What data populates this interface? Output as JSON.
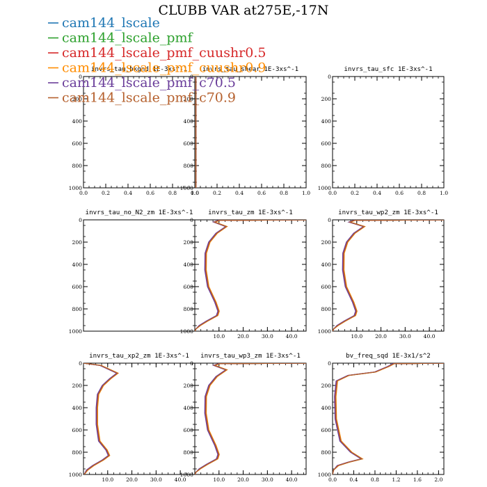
{
  "figure_title": "CLUBB VAR at275E,-17N",
  "legend": [
    {
      "label": "cam144_lscale",
      "color": "#1f77b4"
    },
    {
      "label": "cam144_lscale_pmf",
      "color": "#2ca02c"
    },
    {
      "label": "cam144_lscale_pmf_cuushr0.5",
      "color": "#d62728"
    },
    {
      "label": "cam144_lscale_pmf_cuushr0.9",
      "color": "#ff8c00"
    },
    {
      "label": "cam144_lscale_pmf_c70.5",
      "color": "#6a3d9a"
    },
    {
      "label": "cam144_lscale_pmf_c70.9",
      "color": "#b5602d"
    }
  ],
  "chart_data": [
    {
      "type": "line",
      "title": "invrs_tau_bkgnd  1E-3xs^-1",
      "xlim": [
        0,
        1.0
      ],
      "ylim": [
        1000,
        0
      ],
      "xticks": [
        0,
        0.2,
        0.4,
        0.6,
        0.8,
        1.0
      ],
      "xtick_labels": [
        "0.0",
        "0.2",
        "0.4",
        "0.6",
        "0.8",
        "1.0"
      ],
      "yticks": [
        0,
        200,
        400,
        600,
        800,
        1000
      ],
      "ytick_labels": [
        "0",
        "200",
        "400",
        "600",
        "800",
        "1000"
      ],
      "profile": null
    },
    {
      "type": "line",
      "title": "invrs_tau_shear  1E-3xs^-1",
      "xlim": [
        0,
        1.0
      ],
      "ylim": [
        1000,
        0
      ],
      "xticks": [
        0,
        0.2,
        0.4,
        0.6,
        0.8,
        1.0
      ],
      "xtick_labels": [
        "0.0",
        "0.2",
        "0.4",
        "0.6",
        "0.8",
        "1.0"
      ],
      "yticks": [
        0,
        200,
        400,
        600,
        800,
        1000
      ],
      "ytick_labels": [
        "0",
        "200",
        "400",
        "600",
        "800",
        "1000"
      ],
      "profile": {
        "x": [
          0.01,
          0.01
        ],
        "y": [
          0,
          1000
        ]
      }
    },
    {
      "type": "line",
      "title": "invrs_tau_sfc  1E-3xs^-1",
      "xlim": [
        0,
        1.0
      ],
      "ylim": [
        1000,
        0
      ],
      "xticks": [
        0,
        0.2,
        0.4,
        0.6,
        0.8,
        1.0
      ],
      "xtick_labels": [
        "0.0",
        "0.2",
        "0.4",
        "0.6",
        "0.8",
        "1.0"
      ],
      "yticks": [
        0,
        200,
        400,
        600,
        800,
        1000
      ],
      "ytick_labels": [
        "0",
        "200",
        "400",
        "600",
        "800",
        "1000"
      ],
      "profile": null
    },
    {
      "type": "line",
      "title": "invrs_tau_no_N2_zm  1E-3xs^-1",
      "xlim": [
        0,
        1.0
      ],
      "ylim": [
        1000,
        0
      ],
      "xticks": [],
      "xtick_labels": [],
      "yticks": [
        0,
        200,
        400,
        600,
        800,
        1000
      ],
      "ytick_labels": [
        "0",
        "200",
        "400",
        "600",
        "800",
        "1000"
      ],
      "profile": null
    },
    {
      "type": "line",
      "title": "invrs_tau_zm  1E-3xs^-1",
      "xlim": [
        0,
        46
      ],
      "ylim": [
        1000,
        0
      ],
      "xticks": [
        10,
        20,
        30,
        40
      ],
      "xtick_labels": [
        "10.0",
        "20.0",
        "30.0",
        "40.0"
      ],
      "yticks": [
        0,
        200,
        400,
        600,
        800,
        1000
      ],
      "ytick_labels": [
        "0",
        "200",
        "400",
        "600",
        "800",
        "1000"
      ],
      "profile": {
        "x": [
          46,
          10,
          8,
          13,
          9,
          6,
          4.5,
          4.4,
          5.5,
          8.5,
          9.8,
          9.2,
          5,
          2,
          0.5,
          0.1
        ],
        "y": [
          0,
          5,
          20,
          60,
          120,
          200,
          300,
          450,
          600,
          740,
          820,
          860,
          910,
          950,
          980,
          1000
        ]
      }
    },
    {
      "type": "line",
      "title": "invrs_tau_wp2_zm  1E-3xs^-1",
      "xlim": [
        0,
        46
      ],
      "ylim": [
        1000,
        0
      ],
      "xticks": [
        10,
        20,
        30,
        40
      ],
      "xtick_labels": [
        "10.0",
        "20.0",
        "30.0",
        "40.0"
      ],
      "yticks": [
        0,
        200,
        400,
        600,
        800,
        1000
      ],
      "ytick_labels": [
        "0",
        "200",
        "400",
        "600",
        "800",
        "1000"
      ],
      "profile": {
        "x": [
          46,
          9,
          7,
          13,
          9,
          6,
          4.5,
          4.4,
          5.5,
          8.5,
          9.8,
          9.2,
          5,
          2,
          0.5,
          0.1
        ],
        "y": [
          0,
          5,
          20,
          60,
          120,
          200,
          300,
          450,
          600,
          740,
          820,
          860,
          910,
          950,
          980,
          1000
        ]
      }
    },
    {
      "type": "line",
      "title": "invrs_tau_xp2_zm  1E-3xs^-1",
      "xlim": [
        0,
        46
      ],
      "ylim": [
        1000,
        0
      ],
      "xticks": [
        10,
        20,
        30,
        40
      ],
      "xtick_labels": [
        "10.0",
        "20.0",
        "30.0",
        "40.0"
      ],
      "yticks": [
        0,
        200,
        400,
        600,
        800,
        1000
      ],
      "ytick_labels": [
        "0",
        "200",
        "400",
        "600",
        "800",
        "1000"
      ],
      "profile": {
        "x": [
          0,
          7,
          14,
          11,
          8,
          6,
          5.5,
          5.5,
          6.5,
          9.5,
          10.5,
          8,
          4,
          1.5,
          0.3
        ],
        "y": [
          0,
          20,
          90,
          140,
          200,
          280,
          400,
          550,
          700,
          780,
          830,
          870,
          920,
          960,
          1000
        ]
      }
    },
    {
      "type": "line",
      "title": "invrs_tau_wp3_zm  1E-3xs^-1",
      "xlim": [
        0,
        46
      ],
      "ylim": [
        1000,
        0
      ],
      "xticks": [
        10,
        20,
        30,
        40
      ],
      "xtick_labels": [
        "10.0",
        "20.0",
        "30.0",
        "40.0"
      ],
      "yticks": [
        0,
        200,
        400,
        600,
        800,
        1000
      ],
      "ytick_labels": [
        "0",
        "200",
        "400",
        "600",
        "800",
        "1000"
      ],
      "profile": {
        "x": [
          46,
          10,
          8,
          13,
          9,
          6,
          4.5,
          4.4,
          5.5,
          8.5,
          9.8,
          9.2,
          5,
          2,
          0.5,
          0.1
        ],
        "y": [
          0,
          5,
          20,
          60,
          120,
          200,
          300,
          450,
          600,
          740,
          820,
          860,
          910,
          950,
          980,
          1000
        ]
      }
    },
    {
      "type": "line",
      "title": "bv_freq_sqd  1E-3x1/s^2",
      "xlim": [
        0,
        2.1
      ],
      "ylim": [
        1000,
        0
      ],
      "xticks": [
        0,
        0.4,
        0.8,
        1.2,
        1.6,
        2.0
      ],
      "xtick_labels": [
        "0.0",
        "0.4",
        "0.8",
        "1.2",
        "1.6",
        "2.0"
      ],
      "yticks": [
        0,
        200,
        400,
        600,
        800,
        1000
      ],
      "ytick_labels": [
        "0",
        "200",
        "400",
        "600",
        "800",
        "1000"
      ],
      "profile": {
        "x": [
          2.1,
          1.15,
          1.05,
          0.8,
          0.3,
          0.08,
          0.05,
          0.06,
          0.15,
          0.35,
          0.55,
          0.3,
          0.1,
          0.02,
          0
        ],
        "y": [
          0,
          5,
          30,
          80,
          110,
          160,
          300,
          500,
          700,
          800,
          860,
          890,
          920,
          960,
          1000
        ]
      }
    }
  ]
}
